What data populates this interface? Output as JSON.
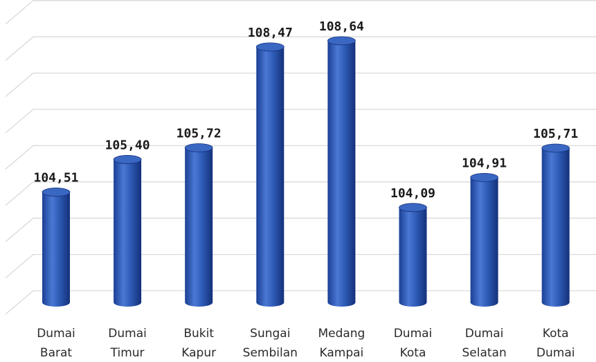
{
  "chart_data": {
    "type": "bar",
    "style": "3d-cylinder",
    "categories": [
      [
        "Dumai",
        "Barat"
      ],
      [
        "Dumai",
        "Timur"
      ],
      [
        "Bukit",
        "Kapur"
      ],
      [
        "Sungai",
        "Sembilan"
      ],
      [
        "Medang",
        "Kampai"
      ],
      [
        "Dumai",
        "Kota"
      ],
      [
        "Dumai",
        "Selatan"
      ],
      [
        "Kota",
        "Dumai"
      ]
    ],
    "values": [
      104.51,
      105.4,
      105.72,
      108.47,
      108.64,
      104.09,
      104.91,
      105.71
    ],
    "value_labels": [
      "104,51",
      "105,40",
      "105,72",
      "108,47",
      "108,64",
      "104,09",
      "104,91",
      "105,71"
    ],
    "ylim": [
      101.5,
      109.6
    ],
    "grid": true,
    "legend": "none",
    "colors": {
      "bar": "#2f5db8",
      "bar_dark": "#14307a",
      "bar_light": "#5b86dc",
      "top": "#3a67c2"
    }
  }
}
